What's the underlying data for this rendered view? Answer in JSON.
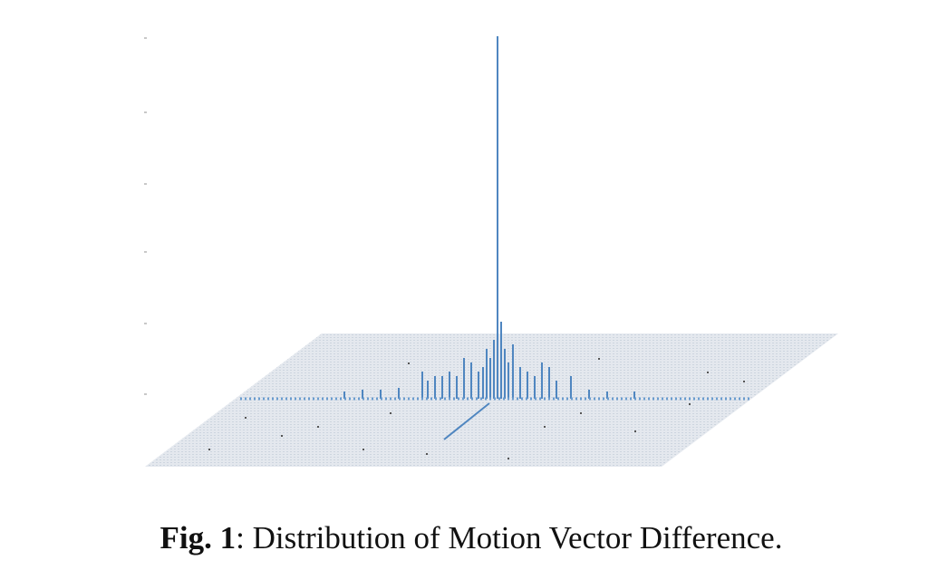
{
  "figure": {
    "caption": {
      "label": "Fig. 1",
      "text": ": Distribution of Motion Vector Difference."
    }
  }
}
